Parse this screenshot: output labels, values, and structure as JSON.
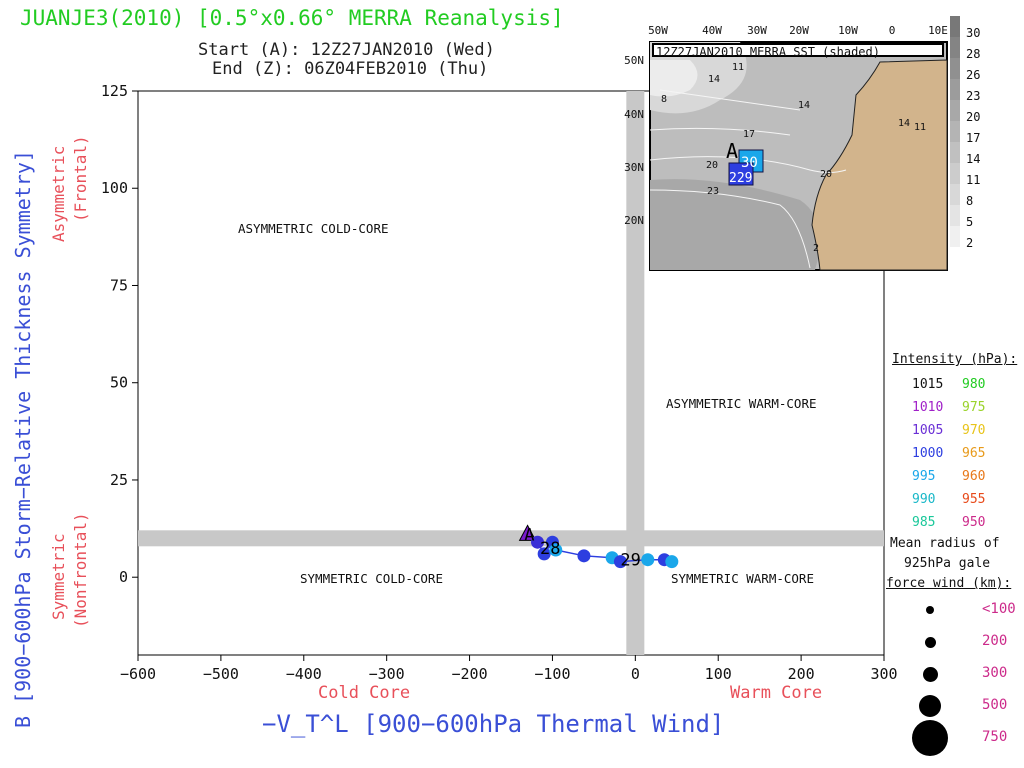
{
  "header": {
    "title": "JUANJE3(2010) [0.5°x0.66° MERRA Reanalysis]",
    "start": "Start (A): 12Z27JAN2010 (Wed)",
    "end": "End (Z): 06Z04FEB2010 (Thu)"
  },
  "chart_data": [
    {
      "type": "scatter",
      "title": "",
      "xlabel": "−V_T^L [900−600hPa Thermal Wind]",
      "ylabel": "B [900−600hPa Storm−Relative Thickness Symmetry]",
      "xlim": [
        -600,
        300
      ],
      "ylim": [
        -20,
        125
      ],
      "x_ticks": [
        -600,
        -500,
        -400,
        -300,
        -200,
        -100,
        0,
        100,
        200,
        300
      ],
      "y_ticks": [
        0,
        25,
        50,
        75,
        100,
        125
      ],
      "x_axis_sublabels": {
        "left": "Cold Core",
        "right": "Warm Core"
      },
      "y_axis_sublabels": {
        "top": [
          "Asymmetric",
          "(Frontal)"
        ],
        "bottom": [
          "Symmetric",
          "(Nonfrontal)"
        ]
      },
      "quadrant_labels": {
        "top_left": "ASYMMETRIC COLD-CORE",
        "top_right": "ASYMMETRIC WARM-CORE",
        "bottom_left": "SYMMETRIC COLD-CORE",
        "bottom_right": "SYMMETRIC WARM-CORE"
      },
      "reference_lines": {
        "x": 0,
        "y": 10
      },
      "track": {
        "x": [
          -130,
          -118,
          -110,
          -100,
          -96,
          -62,
          -28,
          -18,
          15,
          35,
          44
        ],
        "y": [
          11,
          9,
          6,
          9,
          7,
          5.5,
          5,
          4,
          4.5,
          4.5,
          4
        ],
        "colors": [
          "#7a1ccc",
          "#3a2fd6",
          "#2d3ee0",
          "#2d3ee0",
          "#1aa7ea",
          "#2d3ee0",
          "#1aa7ea",
          "#2d3ee0",
          "#1aa7ea",
          "#2d3ee0",
          "#1aa7ea"
        ]
      },
      "annotations": [
        {
          "text": "A",
          "x": -134,
          "y": 11
        },
        {
          "text": "28",
          "x": -115,
          "y": 7.5
        },
        {
          "text": "29",
          "x": -18,
          "y": 4.5
        }
      ]
    },
    {
      "type": "map",
      "title": "12Z27JAN2010 MERRA SST (shaded)",
      "lon_labels": [
        "50W",
        "40W",
        "30W",
        "20W",
        "10W",
        "0",
        "10E"
      ],
      "lat_labels": [
        "50N",
        "40N",
        "30N",
        "20N"
      ],
      "contour_labels": [
        "11",
        "14",
        "8",
        "14",
        "17",
        "20",
        "20",
        "23",
        "14",
        "11",
        "2"
      ],
      "track_labels": [
        "A",
        "30",
        "229"
      ],
      "colorbar": [
        30,
        28,
        26,
        23,
        20,
        17,
        14,
        11,
        8,
        5,
        2
      ]
    }
  ],
  "legend": {
    "intensity_title": "Intensity (hPa):",
    "intensity_rows": [
      {
        "a": "1015",
        "a_color": "#111111",
        "b": "980",
        "b_color": "#22cc22"
      },
      {
        "a": "1010",
        "a_color": "#a020c8",
        "b": "975",
        "b_color": "#9ad32a"
      },
      {
        "a": "1005",
        "a_color": "#6a2fd6",
        "b": "970",
        "b_color": "#e8c41a"
      },
      {
        "a": "1000",
        "a_color": "#2d3ee0",
        "b": "965",
        "b_color": "#e89a1a"
      },
      {
        "a": "995",
        "a_color": "#1aa7ea",
        "b": "960",
        "b_color": "#e8781a"
      },
      {
        "a": "990",
        "a_color": "#1ab8c8",
        "b": "955",
        "b_color": "#e84a1a"
      },
      {
        "a": "985",
        "a_color": "#1ac89a",
        "b": "950",
        "b_color": "#cc2a8a"
      }
    ],
    "radius_title": [
      "Mean radius of",
      "925hPa gale",
      "force wind (km):"
    ],
    "radius_rows": [
      {
        "label": "<100"
      },
      {
        "label": "200"
      },
      {
        "label": "300"
      },
      {
        "label": "500"
      },
      {
        "label": "750"
      }
    ]
  }
}
